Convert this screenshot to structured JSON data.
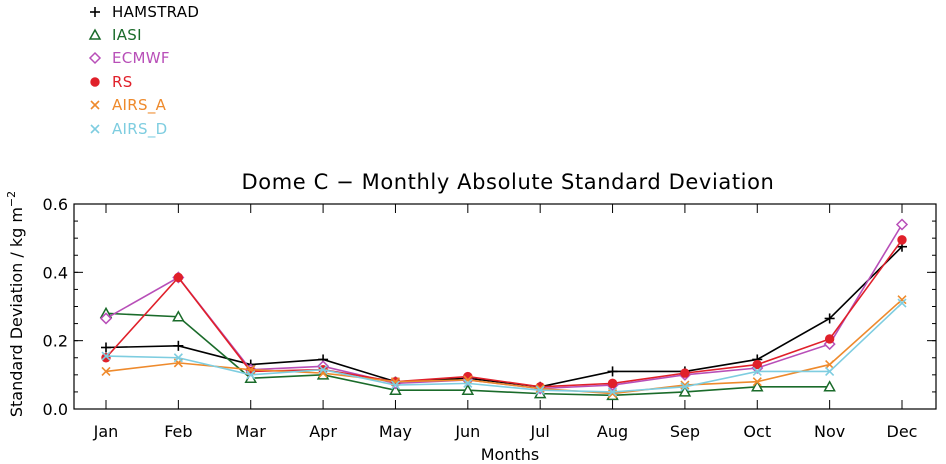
{
  "chart_data": {
    "type": "line",
    "title": "Dome C − Monthly Absolute Standard Deviation",
    "xlabel": "Months",
    "ylabel": "Standard Deviation / kg m",
    "ylabel_superscript": "−2",
    "categories": [
      "Jan",
      "Feb",
      "Mar",
      "Apr",
      "May",
      "Jun",
      "Jul",
      "Aug",
      "Sep",
      "Oct",
      "Nov",
      "Dec"
    ],
    "ylim": [
      0.0,
      0.6
    ],
    "yticks": [
      "0.0",
      "0.2",
      "0.4",
      "0.6"
    ],
    "legend_position": "top-left, above plot",
    "grid": false,
    "series": [
      {
        "name": "HAMSTRAD",
        "color": "#000000",
        "marker": "plus",
        "values": [
          0.18,
          0.185,
          0.13,
          0.145,
          0.08,
          0.09,
          0.065,
          0.11,
          0.11,
          0.145,
          0.265,
          0.475
        ]
      },
      {
        "name": "IASI",
        "color": "#1a6b2a",
        "marker": "triangle",
        "values": [
          0.28,
          0.27,
          0.09,
          0.1,
          0.055,
          0.055,
          0.045,
          0.04,
          0.05,
          0.065,
          0.065,
          null
        ]
      },
      {
        "name": "ECMWF",
        "color": "#b84fb8",
        "marker": "diamond",
        "values": [
          0.265,
          0.385,
          0.115,
          0.125,
          0.075,
          0.085,
          0.06,
          0.07,
          0.1,
          0.12,
          0.19,
          0.54
        ]
      },
      {
        "name": "RS",
        "color": "#e0202a",
        "marker": "circle",
        "values": [
          0.15,
          0.385,
          0.11,
          0.115,
          0.08,
          0.095,
          0.065,
          0.075,
          0.105,
          0.13,
          0.205,
          0.495
        ]
      },
      {
        "name": "AIRS_A",
        "color": "#ee8a2c",
        "marker": "x",
        "values": [
          0.11,
          0.135,
          0.115,
          0.105,
          0.08,
          0.085,
          0.06,
          0.045,
          0.07,
          0.08,
          0.13,
          0.32
        ]
      },
      {
        "name": "AIRS_D",
        "color": "#7ecde0",
        "marker": "x",
        "values": [
          0.155,
          0.15,
          0.1,
          0.115,
          0.07,
          0.075,
          0.055,
          0.05,
          0.065,
          0.11,
          0.11,
          0.31
        ]
      }
    ]
  }
}
